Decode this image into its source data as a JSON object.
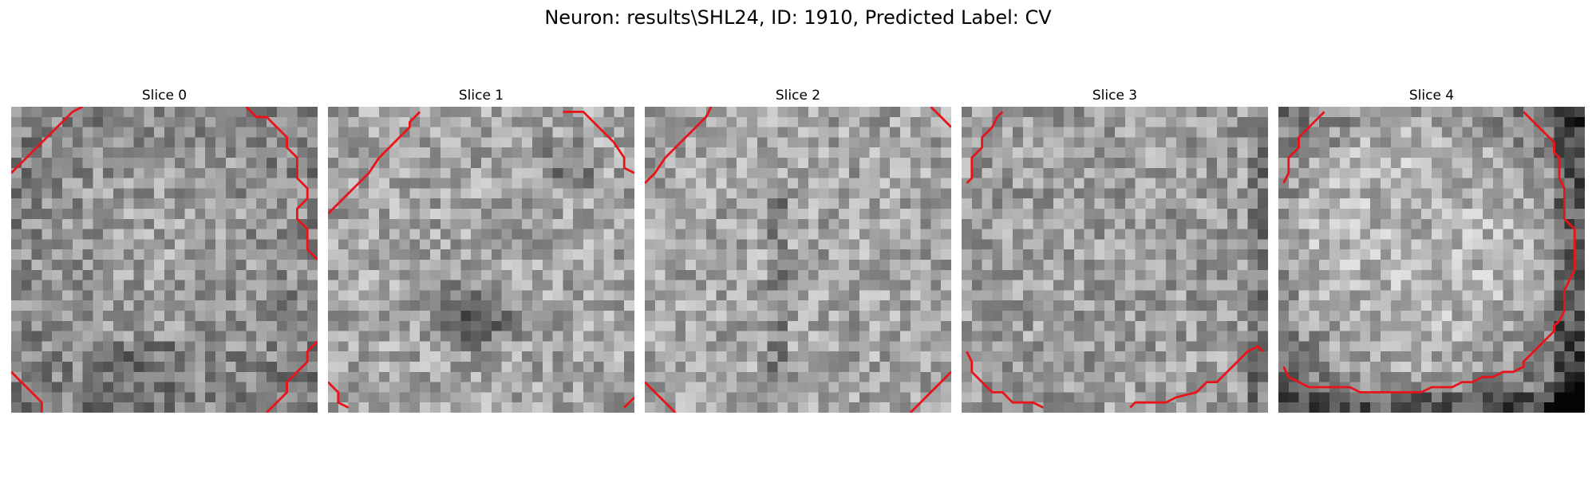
{
  "figure": {
    "title": "Neuron: results\\SHL24, ID: 1910, Predicted Label: CV"
  },
  "panels": [
    {
      "title": "Slice 0",
      "contour_color": "#e8141a"
    },
    {
      "title": "Slice 1",
      "contour_color": "#e8141a"
    },
    {
      "title": "Slice 2",
      "contour_color": "#e8141a"
    },
    {
      "title": "Slice 3",
      "contour_color": "#e8141a"
    },
    {
      "title": "Slice 4",
      "contour_color": "#e8141a"
    }
  ]
}
